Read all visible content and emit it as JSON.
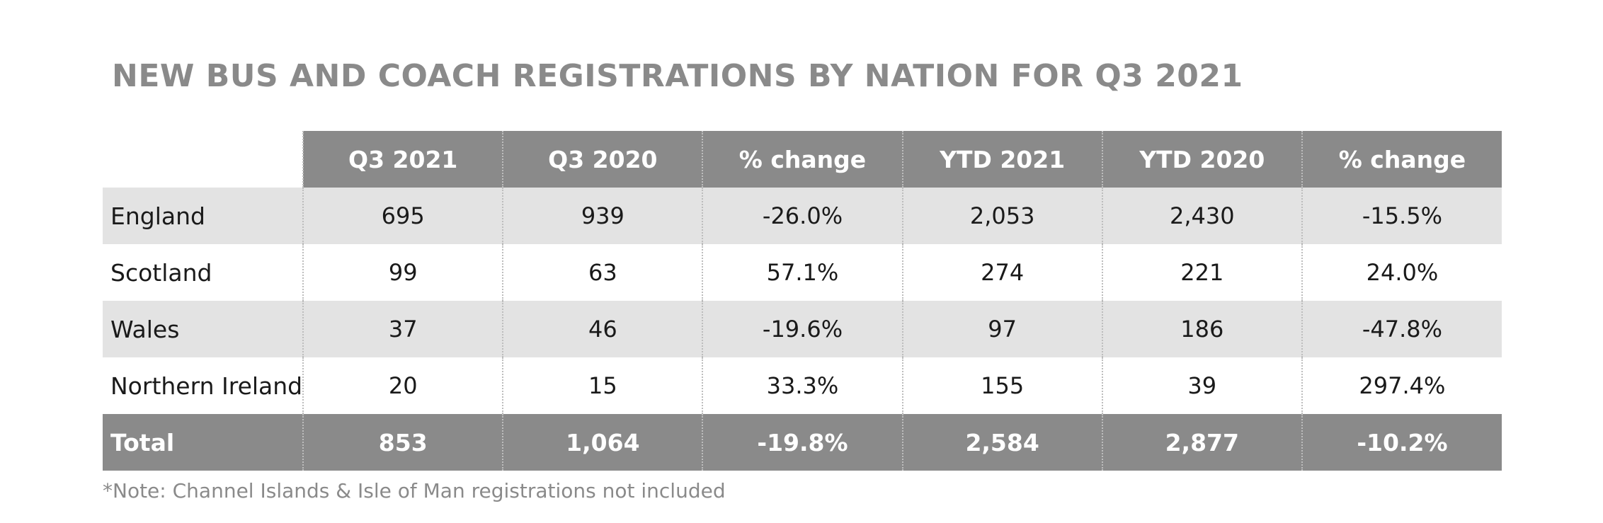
{
  "title": "NEW BUS AND COACH REGISTRATIONS BY NATION FOR Q3 2021",
  "table": {
    "columns": [
      "Q3 2021",
      "Q3 2020",
      "% change",
      "YTD 2021",
      "YTD 2020",
      "% change"
    ],
    "rows": [
      {
        "label": "England",
        "values": [
          "695",
          "939",
          "-26.0%",
          "2,053",
          "2,430",
          "-15.5%"
        ]
      },
      {
        "label": "Scotland",
        "values": [
          "99",
          "63",
          "57.1%",
          "274",
          "221",
          "24.0%"
        ]
      },
      {
        "label": "Wales",
        "values": [
          "37",
          "46",
          "-19.6%",
          "97",
          "186",
          "-47.8%"
        ]
      },
      {
        "label": "Northern Ireland",
        "values": [
          "20",
          "15",
          "33.3%",
          "155",
          "39",
          "297.4%"
        ]
      }
    ],
    "total": {
      "label": "Total",
      "values": [
        "853",
        "1,064",
        "-19.8%",
        "2,584",
        "2,877",
        "-10.2%"
      ]
    }
  },
  "note": "*Note: Channel Islands & Isle of Man registrations not included",
  "colors": {
    "header_bg": "#8a8a8a",
    "row_shade": "#e3e3e3",
    "title_text": "#8a8a8a"
  }
}
